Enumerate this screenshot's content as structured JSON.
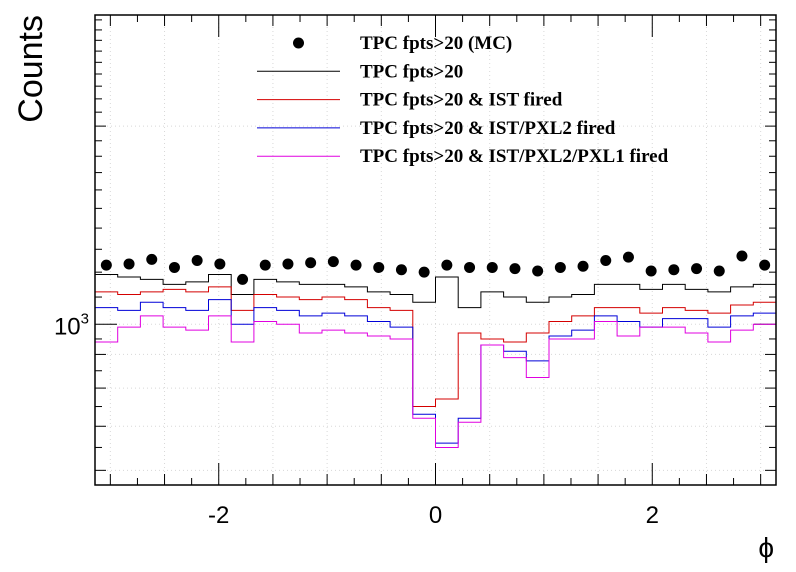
{
  "chart_data": {
    "type": "line",
    "ylabel": "Counts",
    "xlabel": "ϕ",
    "xlim": [
      -3.1416,
      3.1416
    ],
    "ylim": [
      570,
      2950
    ],
    "y_scale": "log",
    "grid": true,
    "legend_position": "top",
    "x_ticks": [
      -2,
      0,
      2
    ],
    "x_tick_labels": [
      "-2",
      "0",
      "2"
    ],
    "y_tick_label": "10^3",
    "y_tick_value": 1000,
    "nbins": 30,
    "series": [
      {
        "name": "TPC fpts>20 (MC)",
        "style": "markers",
        "color": "#000000",
        "values": [
          1230,
          1235,
          1255,
          1220,
          1250,
          1235,
          1170,
          1230,
          1235,
          1240,
          1245,
          1230,
          1220,
          1210,
          1200,
          1230,
          1220,
          1220,
          1215,
          1205,
          1220,
          1225,
          1250,
          1265,
          1205,
          1210,
          1215,
          1205,
          1270,
          1230
        ]
      },
      {
        "name": "TPC fpts>20",
        "style": "step",
        "color": "#000000",
        "values": [
          1190,
          1180,
          1170,
          1150,
          1160,
          1190,
          1110,
          1170,
          1160,
          1150,
          1150,
          1140,
          1120,
          1110,
          1080,
          1180,
          1060,
          1120,
          1100,
          1080,
          1100,
          1110,
          1150,
          1150,
          1130,
          1150,
          1130,
          1120,
          1140,
          1150
        ]
      },
      {
        "name": "TPC fpts>20 & IST fired",
        "style": "step",
        "color": "#d40000",
        "values": [
          1120,
          1110,
          1120,
          1130,
          1120,
          1140,
          1050,
          1110,
          1100,
          1090,
          1100,
          1090,
          1060,
          1050,
          750,
          770,
          970,
          950,
          940,
          970,
          1010,
          1030,
          1060,
          1060,
          1040,
          1060,
          1050,
          1040,
          1070,
          1080
        ]
      },
      {
        "name": "TPC fpts>20 & IST/PXL2 fired",
        "style": "step",
        "color": "#0000d8",
        "values": [
          1060,
          1050,
          1080,
          1060,
          1050,
          1090,
          1000,
          1060,
          1050,
          1030,
          1040,
          1030,
          1010,
          990,
          730,
          660,
          720,
          930,
          910,
          880,
          960,
          980,
          1030,
          1010,
          990,
          1020,
          1020,
          990,
          1030,
          1040
        ]
      },
      {
        "name": "TPC fpts>20 & IST/PXL2/PXL1 fired",
        "style": "step",
        "color": "#e000e0",
        "values": [
          940,
          990,
          1030,
          990,
          980,
          1030,
          940,
          1010,
          1000,
          970,
          980,
          970,
          960,
          950,
          720,
          650,
          710,
          930,
          890,
          830,
          950,
          950,
          1010,
          960,
          990,
          990,
          970,
          940,
          980,
          1000
        ]
      }
    ]
  }
}
